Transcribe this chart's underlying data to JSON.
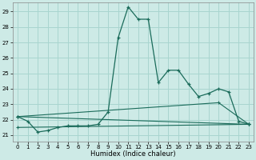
{
  "title": "",
  "xlabel": "Humidex (Indice chaleur)",
  "background_color": "#cdeae6",
  "grid_color": "#a8d5cf",
  "line_color": "#1a6b5a",
  "xlim": [
    -0.5,
    23.5
  ],
  "ylim": [
    20.6,
    29.6
  ],
  "yticks": [
    21,
    22,
    23,
    24,
    25,
    26,
    27,
    28,
    29
  ],
  "xticks": [
    0,
    1,
    2,
    3,
    4,
    5,
    6,
    7,
    8,
    9,
    10,
    11,
    12,
    13,
    14,
    15,
    16,
    17,
    18,
    19,
    20,
    21,
    22,
    23
  ],
  "series": [
    {
      "x": [
        0,
        1,
        2,
        3,
        4,
        5,
        6,
        7,
        8,
        9,
        10,
        11,
        12,
        13,
        14,
        15,
        16,
        17,
        18,
        19,
        20,
        21,
        22,
        23
      ],
      "y": [
        22.2,
        21.9,
        21.2,
        21.3,
        21.5,
        21.6,
        21.6,
        21.6,
        21.7,
        22.5,
        27.3,
        29.3,
        28.5,
        28.5,
        24.4,
        25.2,
        25.2,
        24.3,
        23.5,
        23.7,
        24.0,
        23.8,
        21.9,
        21.7
      ]
    },
    {
      "x": [
        0,
        23
      ],
      "y": [
        22.2,
        21.7
      ]
    },
    {
      "x": [
        0,
        20,
        23
      ],
      "y": [
        22.2,
        23.1,
        21.7
      ]
    },
    {
      "x": [
        0,
        23
      ],
      "y": [
        21.5,
        21.7
      ]
    }
  ]
}
